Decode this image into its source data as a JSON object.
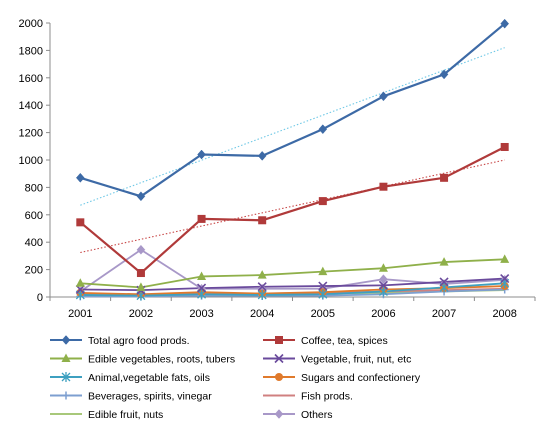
{
  "chart_data": {
    "type": "line",
    "title": "",
    "xlabel": "",
    "ylabel": "",
    "categories": [
      "2001",
      "2002",
      "2003",
      "2004",
      "2005",
      "2006",
      "2007",
      "2008"
    ],
    "ylim": [
      0,
      2000
    ],
    "yticks": [
      0,
      200,
      400,
      600,
      800,
      1000,
      1200,
      1400,
      1600,
      1800,
      2000
    ],
    "grid": false,
    "legend_position": "bottom",
    "series": [
      {
        "name": "Total agro food prods.",
        "color": "#3D6AA6",
        "marker": "diamond",
        "values": [
          870,
          735,
          1040,
          1030,
          1225,
          1465,
          1625,
          1995
        ]
      },
      {
        "name": "Coffee, tea, spices",
        "color": "#B03A3A",
        "marker": "square",
        "values": [
          545,
          175,
          570,
          560,
          700,
          805,
          870,
          1095
        ]
      },
      {
        "name": "Edible vegetables, roots, tubers",
        "color": "#8FB04A",
        "marker": "triangle",
        "values": [
          100,
          70,
          150,
          160,
          185,
          210,
          255,
          275
        ]
      },
      {
        "name": "Vegetable, fruit, nut, etc",
        "color": "#6A4A9C",
        "marker": "x",
        "values": [
          55,
          50,
          65,
          75,
          80,
          85,
          110,
          135
        ]
      },
      {
        "name": "Animal,vegetable fats, oils",
        "color": "#3EA0C0",
        "marker": "star",
        "values": [
          15,
          10,
          20,
          15,
          20,
          40,
          70,
          100
        ]
      },
      {
        "name": "Sugars and confectionery",
        "color": "#E07A2C",
        "marker": "circle",
        "values": [
          30,
          20,
          35,
          25,
          35,
          55,
          65,
          80
        ]
      },
      {
        "name": "Beverages, spirits, vinegar",
        "color": "#7D9FD0",
        "marker": "plus",
        "values": [
          5,
          5,
          10,
          10,
          10,
          20,
          40,
          55
        ]
      },
      {
        "name": "Fish prods.",
        "color": "#D08080",
        "marker": "none",
        "values": [
          20,
          15,
          25,
          25,
          30,
          40,
          50,
          60
        ]
      },
      {
        "name": "Edible fruit, nuts",
        "color": "#A8C87A",
        "marker": "none",
        "values": [
          10,
          10,
          15,
          20,
          25,
          30,
          40,
          50
        ]
      },
      {
        "name": "Others",
        "color": "#A898C8",
        "marker": "diamond",
        "values": [
          40,
          345,
          60,
          60,
          60,
          130,
          95,
          125
        ]
      }
    ],
    "trendlines": [
      {
        "series": "Total agro food prods.",
        "color": "#6EC8E6",
        "start": 670,
        "end": 1820
      },
      {
        "series": "Coffee, tea, spices",
        "color": "#C84848",
        "start": 325,
        "end": 1000
      }
    ]
  }
}
